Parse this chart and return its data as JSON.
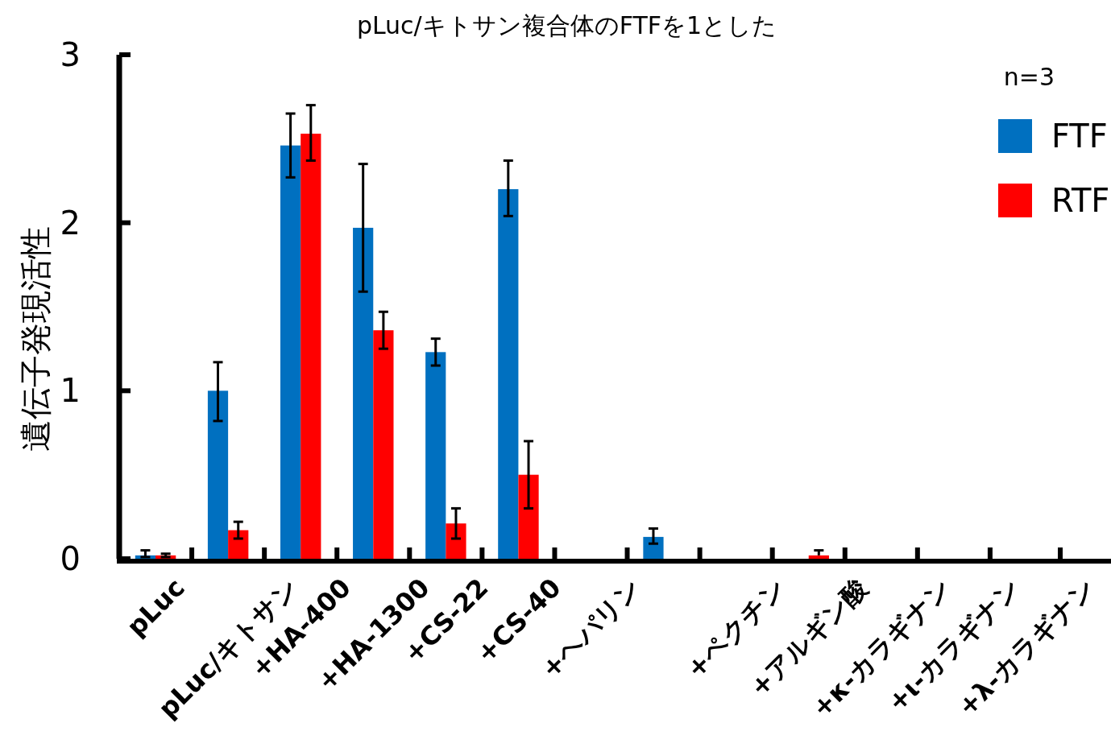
{
  "chart_data": {
    "type": "bar",
    "title": "pLuc/キトサン複合体のFTFを1とした",
    "ylabel": "遺伝子発現活性",
    "legend_title": "n=3",
    "legend": "top right",
    "categories": [
      "pLuc",
      "pLuc/キトサン",
      "+HA-400",
      "+HA-1300",
      "+CS-22",
      "+CS-40",
      "+ヘパリン",
      null,
      "+ペクチン",
      "+アルギン酸",
      "+κ-カラギナン",
      "+ι-カラギナン",
      "+λ-カラギナン"
    ],
    "series": [
      {
        "name": "FTF",
        "color": "#0070c0",
        "values": [
          0.02,
          1.0,
          2.46,
          1.97,
          1.23,
          2.2,
          0,
          0.13,
          0,
          0,
          0,
          0,
          0
        ],
        "errors": [
          [
            0.01,
            0.05
          ],
          [
            0.82,
            1.17
          ],
          [
            2.27,
            2.65
          ],
          [
            1.59,
            2.35
          ],
          [
            1.15,
            1.31
          ],
          [
            2.04,
            2.37
          ],
          null,
          [
            0.09,
            0.18
          ],
          null,
          null,
          null,
          null,
          null
        ]
      },
      {
        "name": "RTF",
        "color": "#ff0000",
        "values": [
          0.02,
          0.17,
          2.53,
          1.36,
          0.21,
          0.5,
          0,
          0,
          0,
          0.02,
          0,
          0,
          0
        ],
        "errors": [
          [
            0.01,
            0.03
          ],
          [
            0.12,
            0.22
          ],
          [
            2.37,
            2.7
          ],
          [
            1.25,
            1.47
          ],
          [
            0.12,
            0.3
          ],
          [
            0.3,
            0.7
          ],
          null,
          null,
          null,
          [
            0.02,
            0.05
          ],
          null,
          null,
          null
        ]
      }
    ],
    "ylim": [
      0,
      3
    ],
    "yticks": [
      0,
      1,
      2,
      3
    ],
    "grid": false
  }
}
